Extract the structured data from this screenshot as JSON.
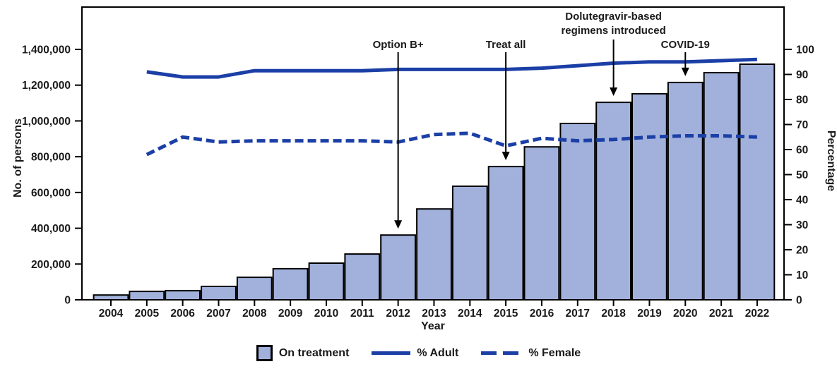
{
  "figure": {
    "legend": [
      {
        "kind": "bar-swatch",
        "label": "On treatment"
      },
      {
        "kind": "solid-line",
        "label": "% Adult"
      },
      {
        "kind": "dashed-line",
        "label": "% Female"
      }
    ]
  },
  "chart_data": {
    "type": "combo",
    "title": "",
    "xlabel": "Year",
    "ylabel_left": "No. of persons",
    "ylabel_right": "Percentage",
    "ylim_left": [
      0,
      1400000
    ],
    "ylim_right": [
      0,
      100
    ],
    "left_tick_step": 200000,
    "right_tick_step": 10,
    "grid": false,
    "legend_position": "bottom",
    "categories": [
      2004,
      2005,
      2006,
      2007,
      2008,
      2009,
      2010,
      2011,
      2012,
      2013,
      2014,
      2015,
      2016,
      2017,
      2018,
      2019,
      2020,
      2021,
      2022
    ],
    "series": [
      {
        "name": "On treatment",
        "type": "bar",
        "axis": "left",
        "values": [
          27000,
          47000,
          51000,
          75000,
          126000,
          174000,
          205000,
          256000,
          362000,
          508000,
          635000,
          745000,
          855000,
          986000,
          1104000,
          1152000,
          1215000,
          1270000,
          1317000
        ]
      },
      {
        "name": "% Adult",
        "type": "line",
        "style": "solid",
        "axis": "right",
        "values": [
          null,
          91,
          89,
          89,
          91.5,
          91.5,
          91.5,
          91.5,
          92,
          92,
          92,
          92,
          92.5,
          93.5,
          94.5,
          95,
          95,
          95.5,
          96
        ]
      },
      {
        "name": "% Female",
        "type": "line",
        "style": "dashed",
        "axis": "right",
        "values": [
          null,
          58,
          65,
          63,
          63.5,
          63.5,
          63.5,
          63.5,
          63,
          66,
          66.5,
          61.5,
          64.5,
          63.5,
          64,
          65,
          65.5,
          65.5,
          65
        ]
      }
    ],
    "annotations": [
      {
        "lines": [
          "Option B+"
        ],
        "year": 2012
      },
      {
        "lines": [
          "Treat all"
        ],
        "year": 2015
      },
      {
        "lines": [
          "Dolutegravir-based",
          "regimens introduced"
        ],
        "year": 2018
      },
      {
        "lines": [
          "COVID-19"
        ],
        "year": 2020
      }
    ],
    "colors": {
      "bar_fill": "#a1b1db",
      "line_blue": "#1b3fa6",
      "axis": "#000000",
      "text": "#1a1a1a"
    }
  }
}
